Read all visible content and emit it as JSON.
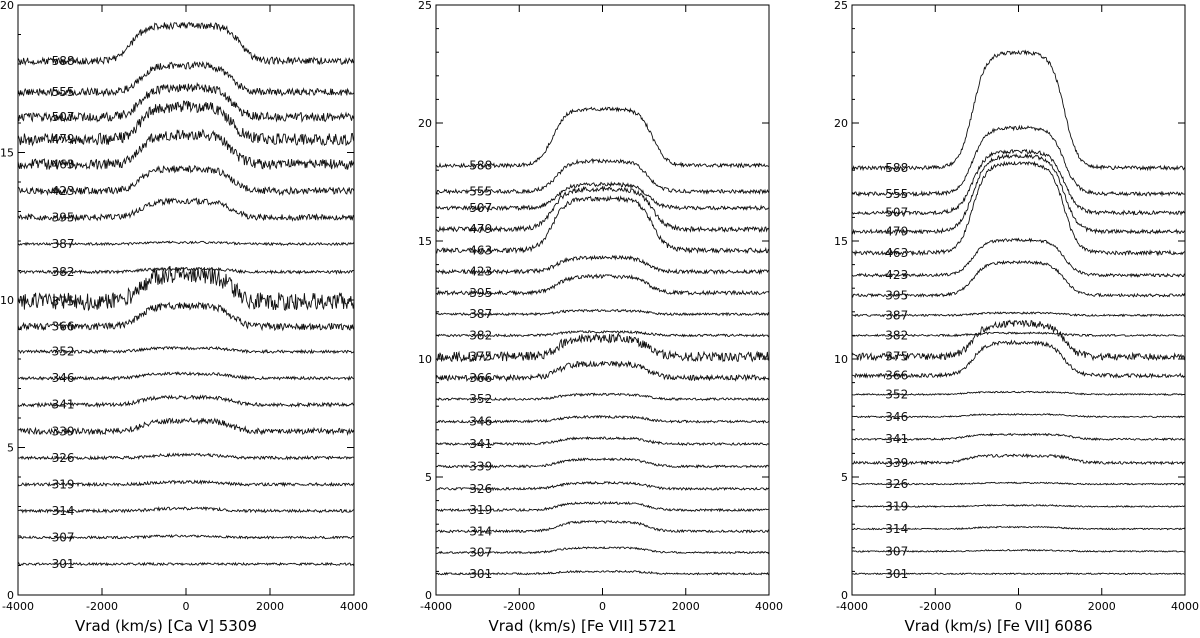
{
  "chart_data": [
    {
      "type": "line",
      "xlabel": "Vrad (km/s) [Ca V] 5309",
      "xlim": [
        -4000,
        4000
      ],
      "ylim": [
        0,
        20
      ],
      "xticks": [
        "-4000",
        "-2000",
        "0",
        "2000",
        "4000"
      ],
      "yticks": [
        "0",
        "5",
        "10",
        "15",
        "20"
      ],
      "series": [
        {
          "name": "301",
          "offset": 1.05,
          "amp": 0.0,
          "width": 900,
          "noise": 0.04
        },
        {
          "name": "307",
          "offset": 1.95,
          "amp": 0.05,
          "width": 900,
          "noise": 0.04
        },
        {
          "name": "314",
          "offset": 2.85,
          "amp": 0.08,
          "width": 900,
          "noise": 0.05
        },
        {
          "name": "319",
          "offset": 3.75,
          "amp": 0.08,
          "width": 900,
          "noise": 0.05
        },
        {
          "name": "326",
          "offset": 4.65,
          "amp": 0.1,
          "width": 900,
          "noise": 0.05
        },
        {
          "name": "339",
          "offset": 5.55,
          "amp": 0.35,
          "width": 1100,
          "noise": 0.1
        },
        {
          "name": "341",
          "offset": 6.45,
          "amp": 0.25,
          "width": 1100,
          "noise": 0.06
        },
        {
          "name": "346",
          "offset": 7.35,
          "amp": 0.15,
          "width": 1100,
          "noise": 0.05
        },
        {
          "name": "352",
          "offset": 8.25,
          "amp": 0.12,
          "width": 1100,
          "noise": 0.05
        },
        {
          "name": "366",
          "offset": 9.1,
          "amp": 0.7,
          "width": 1100,
          "noise": 0.12
        },
        {
          "name": "375",
          "offset": 9.95,
          "amp": 0.9,
          "width": 1100,
          "noise": 0.3
        },
        {
          "name": "382",
          "offset": 10.95,
          "amp": 0.1,
          "width": 1100,
          "noise": 0.05
        },
        {
          "name": "387",
          "offset": 11.9,
          "amp": 0.05,
          "width": 1100,
          "noise": 0.04
        },
        {
          "name": "395",
          "offset": 12.8,
          "amp": 0.55,
          "width": 1100,
          "noise": 0.1
        },
        {
          "name": "423",
          "offset": 13.7,
          "amp": 0.75,
          "width": 1100,
          "noise": 0.12
        },
        {
          "name": "463",
          "offset": 14.6,
          "amp": 1.0,
          "width": 1100,
          "noise": 0.18
        },
        {
          "name": "479",
          "offset": 15.45,
          "amp": 1.1,
          "width": 1100,
          "noise": 0.2
        },
        {
          "name": "507",
          "offset": 16.2,
          "amp": 1.0,
          "width": 1100,
          "noise": 0.15
        },
        {
          "name": "555",
          "offset": 17.05,
          "amp": 0.9,
          "width": 1100,
          "noise": 0.12
        },
        {
          "name": "588",
          "offset": 18.1,
          "amp": 1.2,
          "width": 1300,
          "noise": 0.12
        }
      ]
    },
    {
      "type": "line",
      "xlabel": "Vrad (km/s) [Fe VII] 5721",
      "xlim": [
        -4000,
        4000
      ],
      "ylim": [
        0,
        25
      ],
      "xticks": [
        "-4000",
        "-2000",
        "0",
        "2000",
        "4000"
      ],
      "yticks": [
        "0",
        "5",
        "10",
        "15",
        "20",
        "25"
      ],
      "series": [
        {
          "name": "301",
          "offset": 0.9,
          "amp": 0.1,
          "width": 1100,
          "noise": 0.04
        },
        {
          "name": "307",
          "offset": 1.8,
          "amp": 0.2,
          "width": 1100,
          "noise": 0.04
        },
        {
          "name": "314",
          "offset": 2.7,
          "amp": 0.4,
          "width": 1100,
          "noise": 0.05
        },
        {
          "name": "319",
          "offset": 3.6,
          "amp": 0.3,
          "width": 1100,
          "noise": 0.05
        },
        {
          "name": "326",
          "offset": 4.5,
          "amp": 0.25,
          "width": 1100,
          "noise": 0.05
        },
        {
          "name": "339",
          "offset": 5.45,
          "amp": 0.3,
          "width": 1100,
          "noise": 0.05
        },
        {
          "name": "341",
          "offset": 6.4,
          "amp": 0.25,
          "width": 1100,
          "noise": 0.05
        },
        {
          "name": "346",
          "offset": 7.35,
          "amp": 0.2,
          "width": 1100,
          "noise": 0.05
        },
        {
          "name": "352",
          "offset": 8.3,
          "amp": 0.2,
          "width": 1100,
          "noise": 0.05
        },
        {
          "name": "366",
          "offset": 9.2,
          "amp": 0.6,
          "width": 1100,
          "noise": 0.12
        },
        {
          "name": "375",
          "offset": 10.1,
          "amp": 0.8,
          "width": 1100,
          "noise": 0.2
        },
        {
          "name": "382",
          "offset": 11.0,
          "amp": 0.15,
          "width": 1100,
          "noise": 0.05
        },
        {
          "name": "387",
          "offset": 11.9,
          "amp": 0.15,
          "width": 1100,
          "noise": 0.05
        },
        {
          "name": "395",
          "offset": 12.8,
          "amp": 0.7,
          "width": 1100,
          "noise": 0.08
        },
        {
          "name": "423",
          "offset": 13.7,
          "amp": 0.6,
          "width": 1100,
          "noise": 0.08
        },
        {
          "name": "463",
          "offset": 14.6,
          "amp": 2.2,
          "width": 1200,
          "noise": 0.1
        },
        {
          "name": "479",
          "offset": 15.5,
          "amp": 1.7,
          "width": 1200,
          "noise": 0.1
        },
        {
          "name": "507",
          "offset": 16.4,
          "amp": 1.0,
          "width": 1100,
          "noise": 0.08
        },
        {
          "name": "555",
          "offset": 17.1,
          "amp": 1.3,
          "width": 1100,
          "noise": 0.08
        },
        {
          "name": "588",
          "offset": 18.2,
          "amp": 2.4,
          "width": 1200,
          "noise": 0.08
        }
      ]
    },
    {
      "type": "line",
      "xlabel": "Vrad (km/s) [Fe VII] 6086",
      "xlim": [
        -4000,
        4000
      ],
      "ylim": [
        0,
        25
      ],
      "xticks": [
        "-4000",
        "-2000",
        "0",
        "2000",
        "4000"
      ],
      "yticks": [
        "0",
        "5",
        "10",
        "15",
        "20",
        "25"
      ],
      "series": [
        {
          "name": "301",
          "offset": 0.9,
          "amp": 0.0,
          "width": 1100,
          "noise": 0.03
        },
        {
          "name": "307",
          "offset": 1.85,
          "amp": 0.05,
          "width": 1100,
          "noise": 0.03
        },
        {
          "name": "314",
          "offset": 2.8,
          "amp": 0.08,
          "width": 1100,
          "noise": 0.03
        },
        {
          "name": "319",
          "offset": 3.75,
          "amp": 0.05,
          "width": 1100,
          "noise": 0.03
        },
        {
          "name": "326",
          "offset": 4.7,
          "amp": 0.05,
          "width": 1100,
          "noise": 0.03
        },
        {
          "name": "339",
          "offset": 5.6,
          "amp": 0.3,
          "width": 1300,
          "noise": 0.06
        },
        {
          "name": "341",
          "offset": 6.6,
          "amp": 0.2,
          "width": 1300,
          "noise": 0.04
        },
        {
          "name": "346",
          "offset": 7.55,
          "amp": 0.1,
          "width": 1300,
          "noise": 0.03
        },
        {
          "name": "352",
          "offset": 8.5,
          "amp": 0.1,
          "width": 1300,
          "noise": 0.03
        },
        {
          "name": "366",
          "offset": 9.3,
          "amp": 1.4,
          "width": 1100,
          "noise": 0.08
        },
        {
          "name": "375",
          "offset": 10.1,
          "amp": 1.4,
          "width": 1100,
          "noise": 0.15
        },
        {
          "name": "382",
          "offset": 11.0,
          "amp": 0.1,
          "width": 1100,
          "noise": 0.04
        },
        {
          "name": "387",
          "offset": 11.85,
          "amp": 0.1,
          "width": 1100,
          "noise": 0.04
        },
        {
          "name": "395",
          "offset": 12.7,
          "amp": 1.4,
          "width": 1100,
          "noise": 0.06
        },
        {
          "name": "423",
          "offset": 13.55,
          "amp": 1.5,
          "width": 1100,
          "noise": 0.06
        },
        {
          "name": "463",
          "offset": 14.5,
          "amp": 3.8,
          "width": 1100,
          "noise": 0.08
        },
        {
          "name": "479",
          "offset": 15.4,
          "amp": 3.2,
          "width": 1100,
          "noise": 0.08
        },
        {
          "name": "507",
          "offset": 16.2,
          "amp": 2.6,
          "width": 1100,
          "noise": 0.08
        },
        {
          "name": "555",
          "offset": 17.0,
          "amp": 2.8,
          "width": 1100,
          "noise": 0.08
        },
        {
          "name": "588",
          "offset": 18.1,
          "amp": 4.9,
          "width": 1100,
          "noise": 0.08
        }
      ]
    }
  ]
}
